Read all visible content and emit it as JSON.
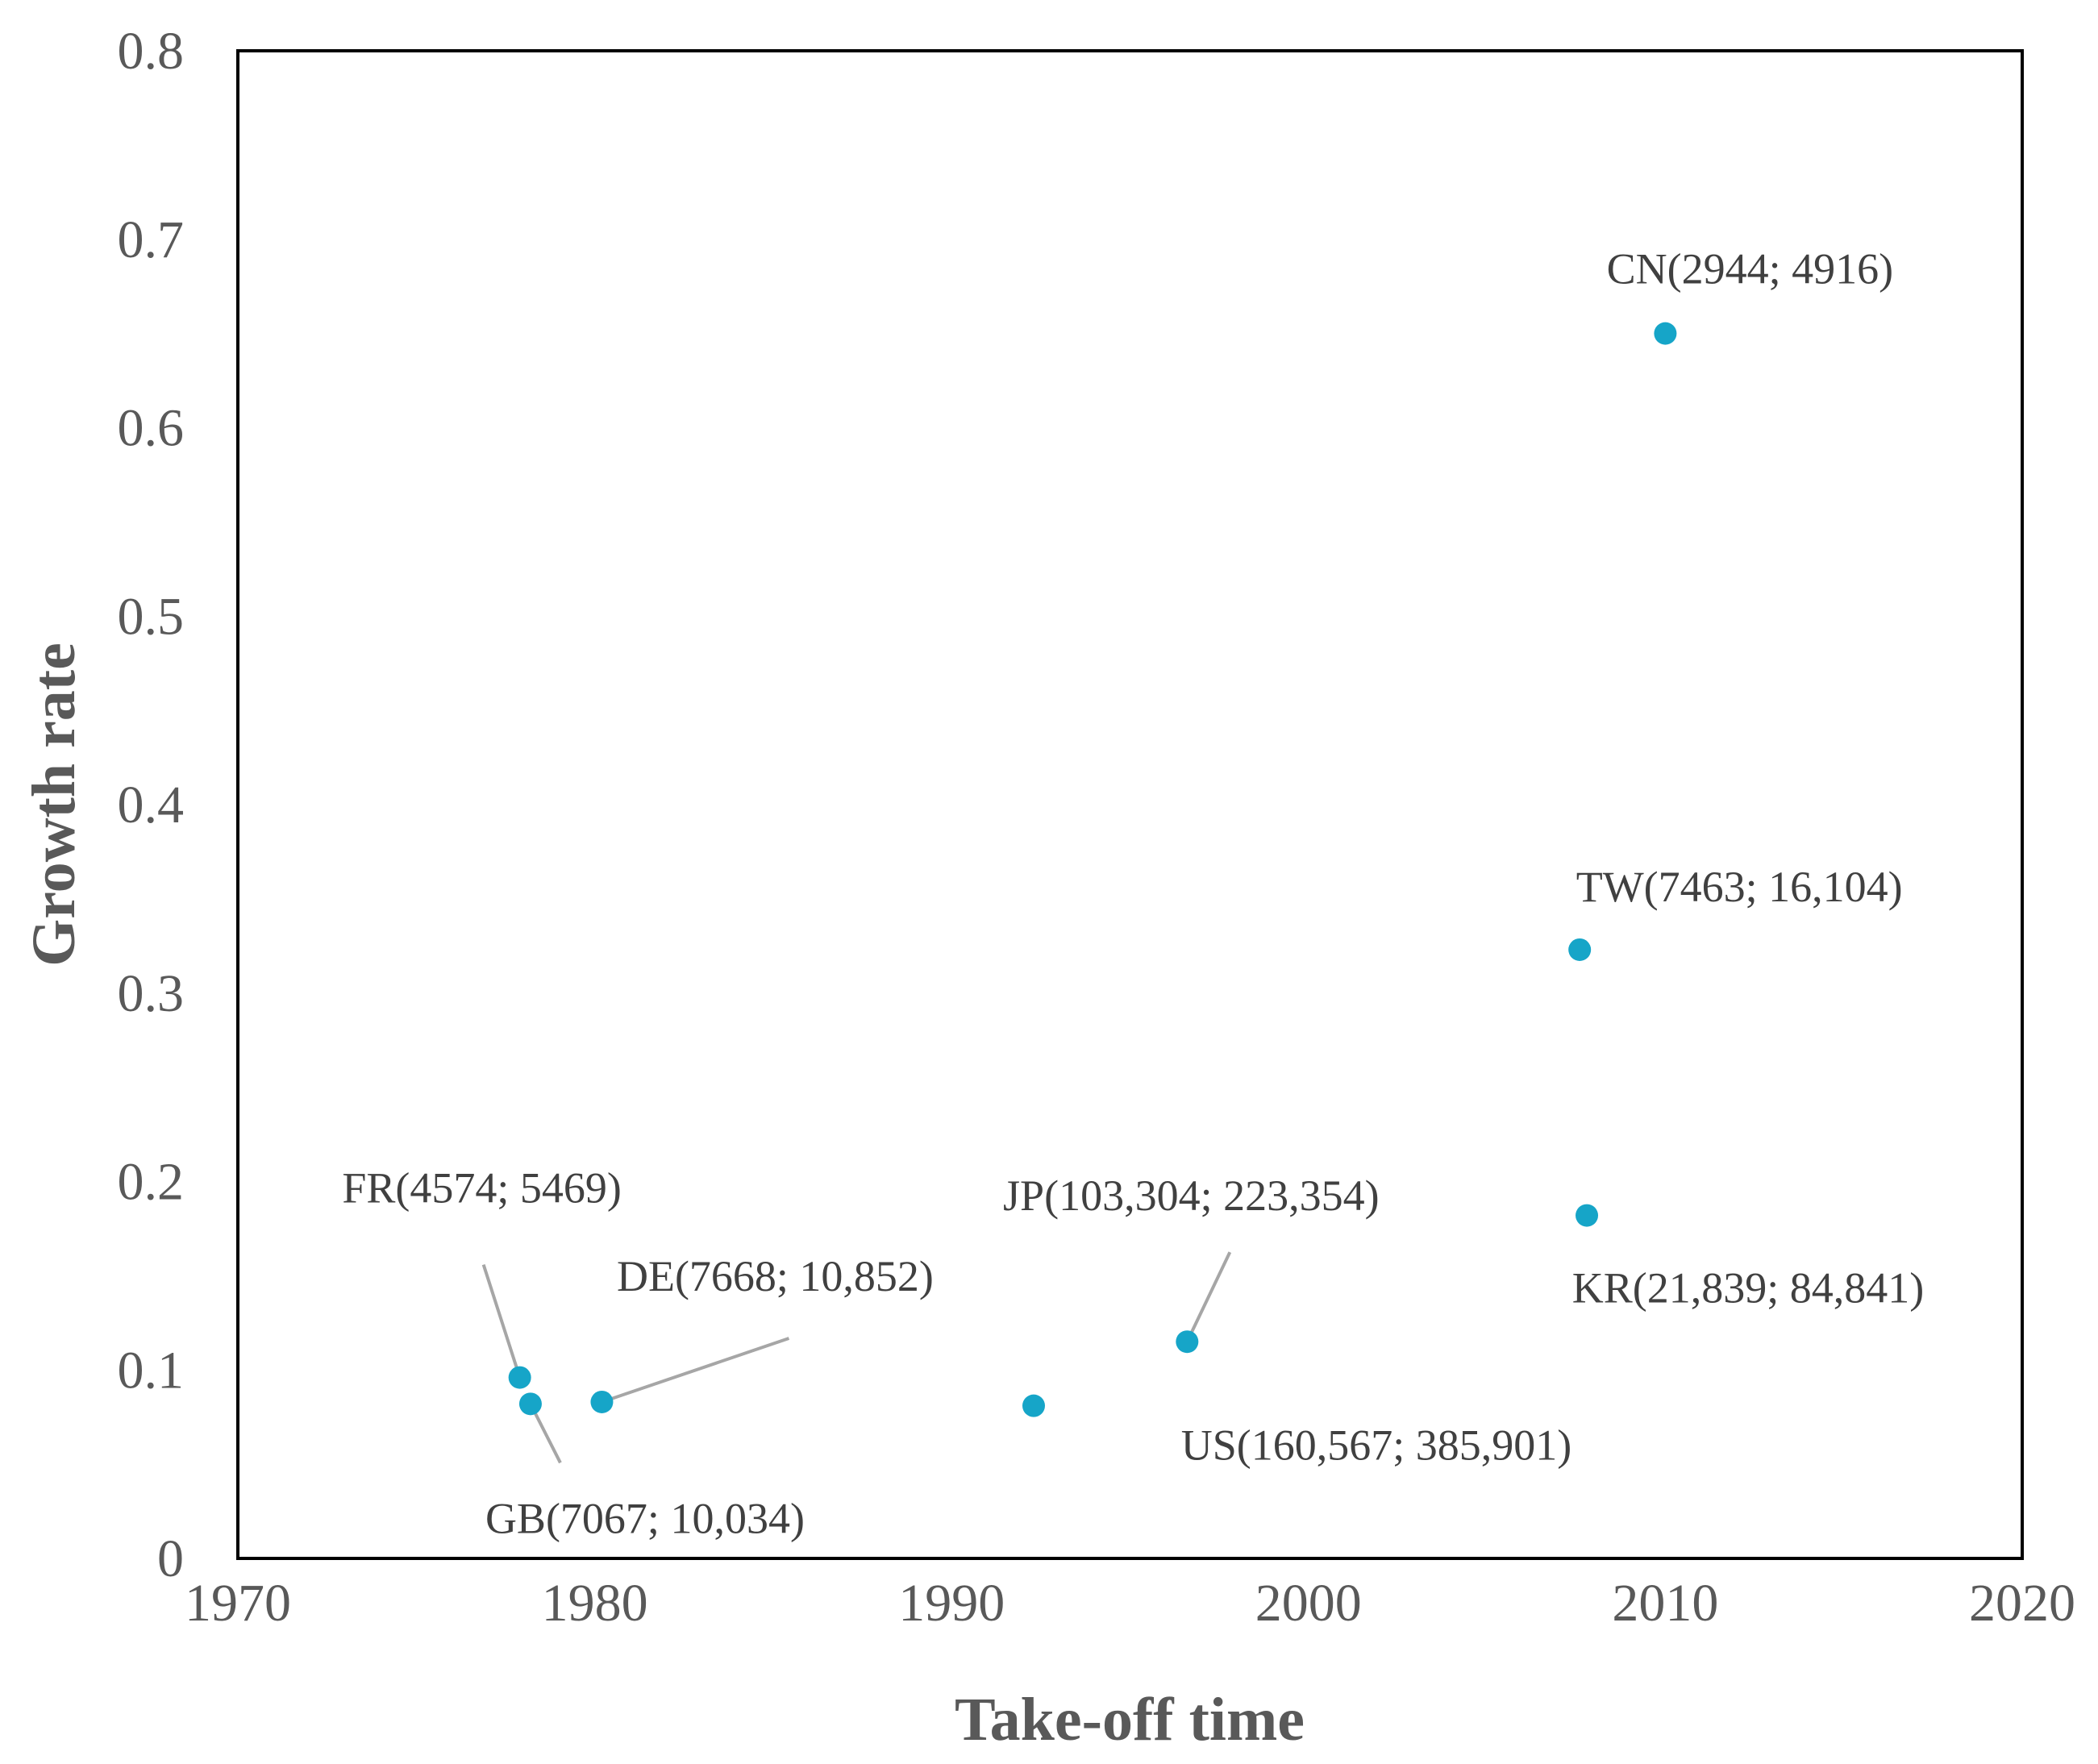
{
  "chart_data": {
    "type": "scatter",
    "title": "",
    "xlabel": "Take-off time",
    "ylabel": "Growth rate",
    "xlim": [
      1970,
      2020
    ],
    "ylim": [
      0,
      0.8
    ],
    "xticks": [
      1970,
      1980,
      1990,
      2000,
      2010,
      2020
    ],
    "yticks": [
      0,
      0.1,
      0.2,
      0.3,
      0.4,
      0.5,
      0.6,
      0.7,
      0.8
    ],
    "xtick_labels": [
      "1970",
      "1980",
      "1990",
      "2000",
      "2010",
      "2020"
    ],
    "ytick_labels": [
      "0",
      "0.1",
      "0.2",
      "0.3",
      "0.4",
      "0.5",
      "0.6",
      "0.7",
      "0.8"
    ],
    "grid": false,
    "marker_color": "#16a5c8",
    "leader_color": "#a6a6a6",
    "points": [
      {
        "code": "CN",
        "label": "CN(2944; 4916)",
        "x": 2010.0,
        "y": 0.65
      },
      {
        "code": "TW",
        "label": "TW(7463; 16,104)",
        "x": 2007.6,
        "y": 0.323
      },
      {
        "code": "KR",
        "label": "KR(21,839; 84,841)",
        "x": 2007.8,
        "y": 0.182
      },
      {
        "code": "JP",
        "label": "JP(103,304; 223,354)",
        "x": 1996.6,
        "y": 0.115
      },
      {
        "code": "US",
        "label": "US(160,567; 385,901)",
        "x": 1992.3,
        "y": 0.081
      },
      {
        "code": "DE",
        "label": "DE(7668; 10,852)",
        "x": 1980.2,
        "y": 0.083
      },
      {
        "code": "FR",
        "label": "FR(4574; 5469)",
        "x": 1977.9,
        "y": 0.096
      },
      {
        "code": "GB",
        "label": "GB(7067; 10,034)",
        "x": 1978.2,
        "y": 0.082
      }
    ]
  }
}
